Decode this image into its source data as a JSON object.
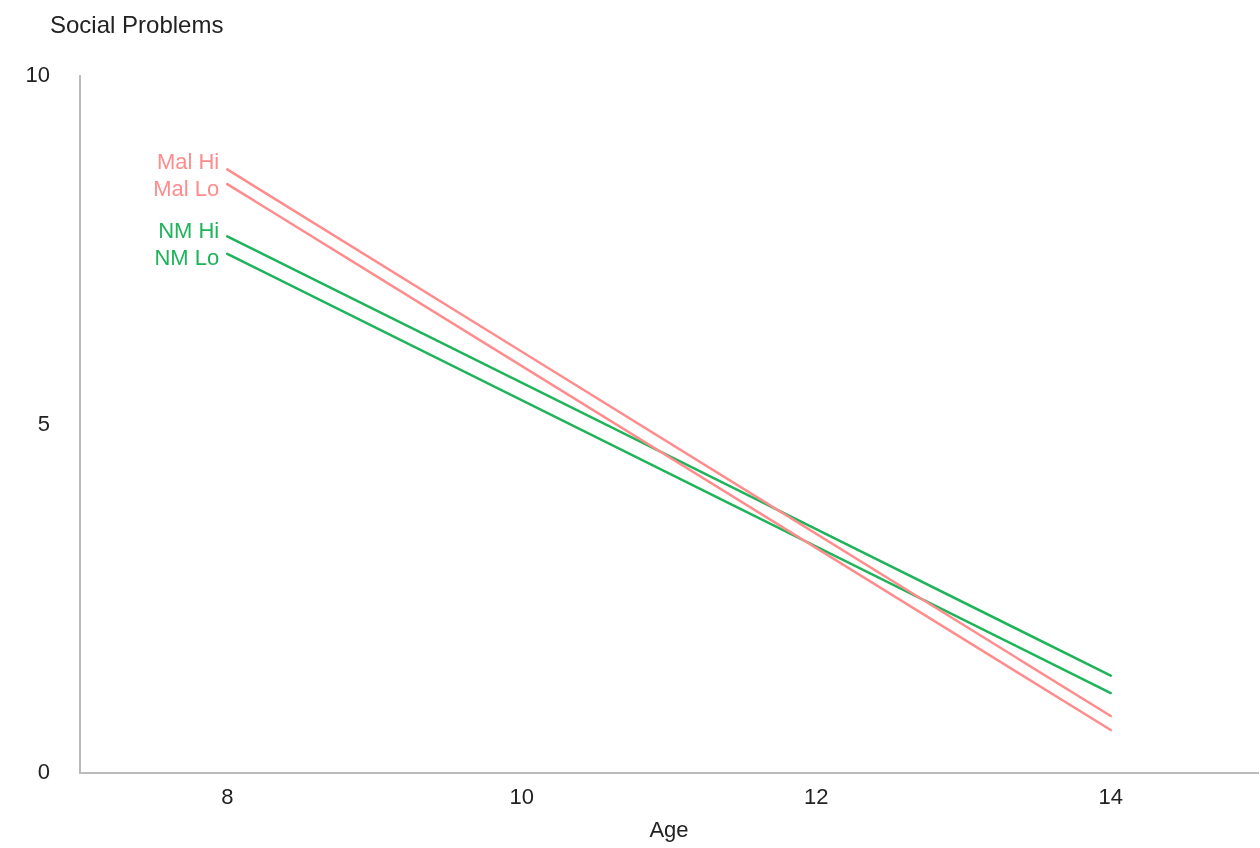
{
  "chart_data": {
    "type": "line",
    "title": "Social Problems",
    "xlabel": "Age",
    "x": [
      8,
      14
    ],
    "xlim": [
      7,
      15
    ],
    "xticks": [
      8,
      10,
      12,
      14
    ],
    "ylim": [
      0,
      10
    ],
    "yticks": [
      0,
      5,
      10
    ],
    "grid": false,
    "legend": false,
    "marker": "none",
    "line_style": "solid",
    "series": [
      {
        "name": "Mal Hi",
        "color": "#ff8c8c",
        "values": [
          8.66,
          0.82
        ]
      },
      {
        "name": "Mal Lo",
        "color": "#ff8c8c",
        "values": [
          8.45,
          0.62
        ]
      },
      {
        "name": "NM Hi",
        "color": "#1fb35a",
        "values": [
          7.7,
          1.4
        ]
      },
      {
        "name": "NM Lo",
        "color": "#1fb35a",
        "values": [
          7.45,
          1.15
        ]
      }
    ]
  }
}
